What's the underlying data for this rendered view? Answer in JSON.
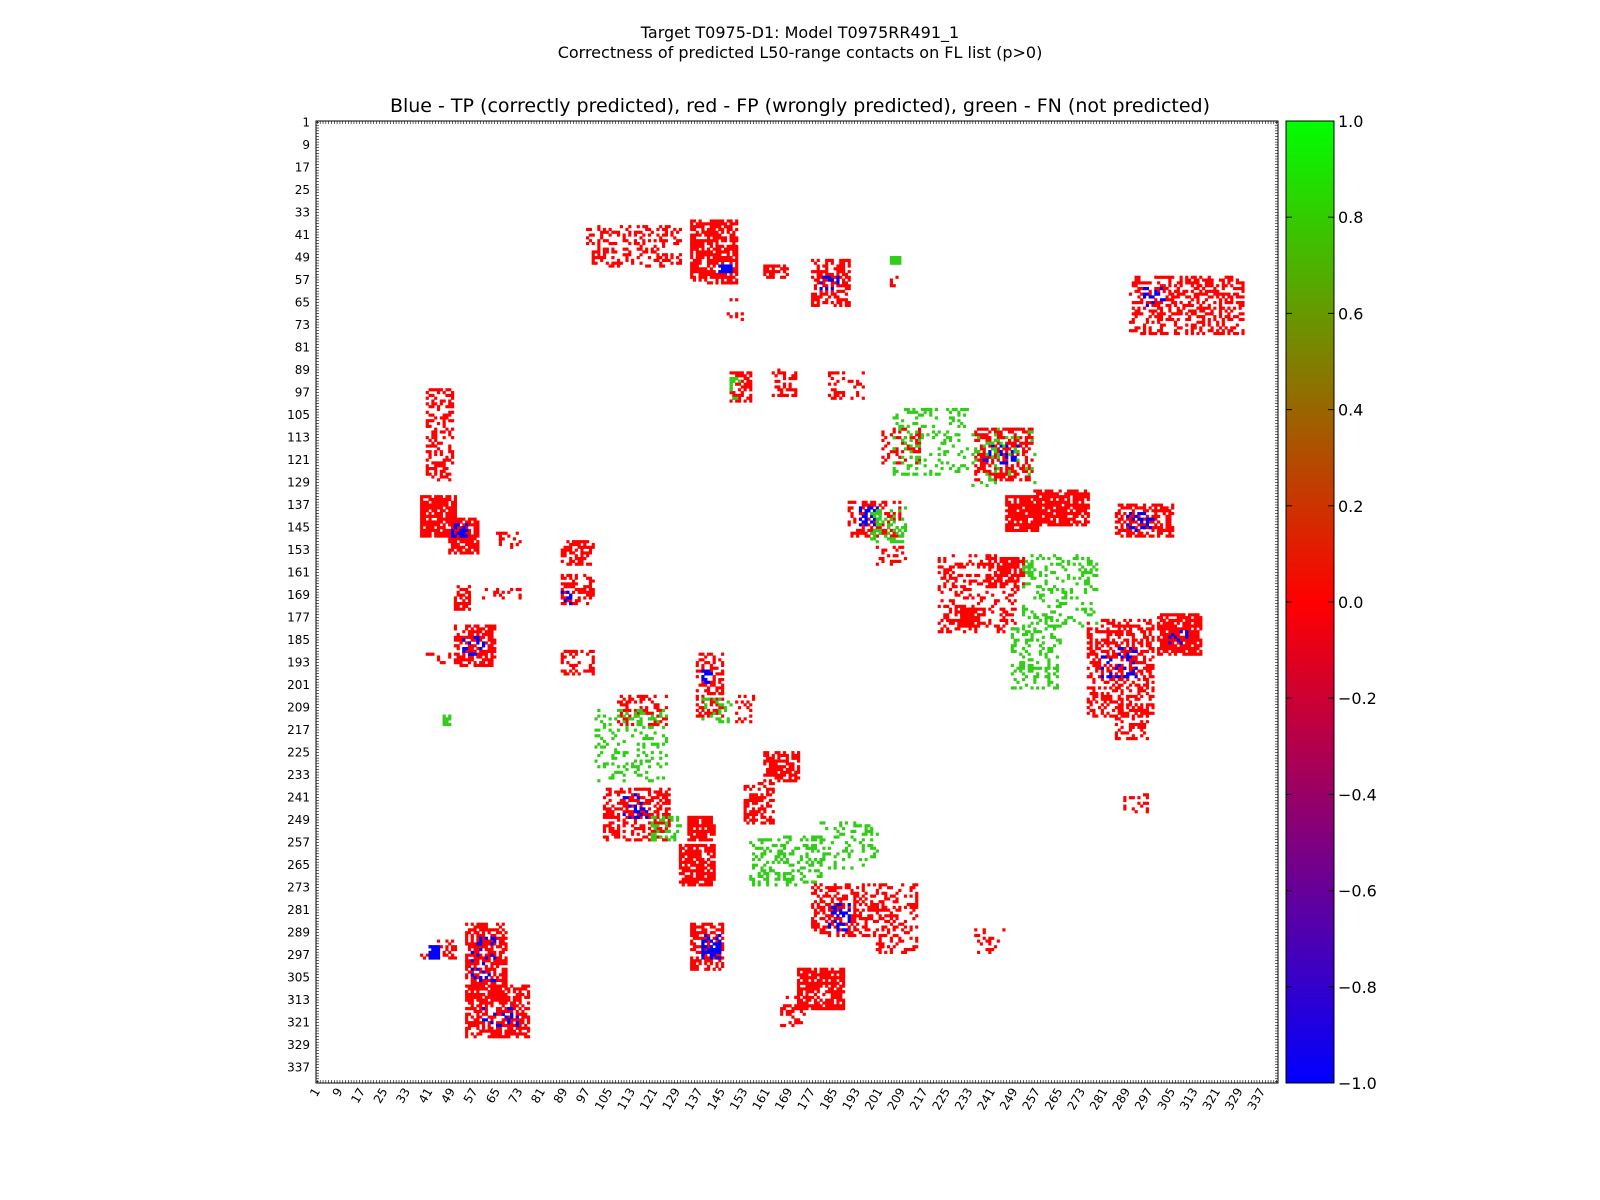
{
  "chart_data": {
    "type": "heatmap",
    "suptitle_line1": "Target T0975-D1: Model T0975RR491_1",
    "suptitle_line2": "Correctness of predicted L50-range contacts on FL list (p>0)",
    "title": "Blue - TP (correctly predicted), red - FP (wrongly predicted), green - FN (not predicted)",
    "axis_range": [
      1,
      342
    ],
    "tick_labels": [
      "1",
      "9",
      "17",
      "25",
      "33",
      "41",
      "49",
      "57",
      "65",
      "73",
      "81",
      "89",
      "97",
      "105",
      "113",
      "121",
      "129",
      "137",
      "145",
      "153",
      "161",
      "169",
      "177",
      "185",
      "193",
      "201",
      "209",
      "217",
      "225",
      "233",
      "241",
      "249",
      "257",
      "265",
      "273",
      "281",
      "289",
      "297",
      "305",
      "313",
      "321",
      "329",
      "337"
    ],
    "colorbar": {
      "range": [
        -1.0,
        1.0
      ],
      "tick_labels": [
        "1.0",
        "0.8",
        "0.6",
        "0.4",
        "0.2",
        "0.0",
        "−0.2",
        "−0.4",
        "−0.6",
        "−0.8",
        "−1.0"
      ],
      "colors": [
        "#0000ff",
        "#ff0000",
        "#00ff00"
      ]
    },
    "categories": {
      "tp": {
        "label": "TP (correctly predicted)",
        "value": -1.0,
        "color": "#0000ff"
      },
      "fp": {
        "label": "FP (wrongly predicted)",
        "value": 0.0,
        "color": "#ff0000"
      },
      "fn": {
        "label": "FN (not predicted)",
        "value": 1.0,
        "color": "#33cc1a"
      }
    },
    "regions": [
      {
        "c": "fp",
        "x": [
          97,
          130
        ],
        "y": [
          38,
          52
        ],
        "d": 0.35
      },
      {
        "c": "fp",
        "x": [
          134,
          150
        ],
        "y": [
          36,
          58
        ],
        "d": 0.75
      },
      {
        "c": "tp",
        "x": [
          144,
          148
        ],
        "y": [
          52,
          54
        ],
        "d": 0.9
      },
      {
        "c": "fp",
        "x": [
          160,
          168
        ],
        "y": [
          52,
          56
        ],
        "d": 0.6
      },
      {
        "c": "fp",
        "x": [
          177,
          190
        ],
        "y": [
          50,
          66
        ],
        "d": 0.55
      },
      {
        "c": "tp",
        "x": [
          180,
          186
        ],
        "y": [
          56,
          60
        ],
        "d": 0.4
      },
      {
        "c": "fp",
        "x": [
          147,
          152
        ],
        "y": [
          64,
          74
        ],
        "d": 0.1
      },
      {
        "c": "fp",
        "x": [
          205,
          207
        ],
        "y": [
          50,
          66
        ],
        "d": 0.12
      },
      {
        "c": "fn",
        "x": [
          205,
          208
        ],
        "y": [
          49,
          51
        ],
        "d": 0.8
      },
      {
        "c": "fp",
        "x": [
          290,
          330
        ],
        "y": [
          56,
          76
        ],
        "d": 0.45
      },
      {
        "c": "tp",
        "x": [
          295,
          302
        ],
        "y": [
          60,
          66
        ],
        "d": 0.3
      },
      {
        "c": "fp",
        "x": [
          148,
          155
        ],
        "y": [
          90,
          100
        ],
        "d": 0.55
      },
      {
        "c": "fp",
        "x": [
          163,
          171
        ],
        "y": [
          89,
          98
        ],
        "d": 0.45
      },
      {
        "c": "fn",
        "x": [
          148,
          151
        ],
        "y": [
          92,
          99
        ],
        "d": 0.3
      },
      {
        "c": "fp",
        "x": [
          183,
          195
        ],
        "y": [
          90,
          99
        ],
        "d": 0.25
      },
      {
        "c": "fp",
        "x": [
          40,
          49
        ],
        "y": [
          96,
          128
        ],
        "d": 0.45
      },
      {
        "c": "fp",
        "x": [
          38,
          50
        ],
        "y": [
          134,
          148
        ],
        "d": 0.8
      },
      {
        "c": "fp",
        "x": [
          48,
          58
        ],
        "y": [
          142,
          154
        ],
        "d": 0.8
      },
      {
        "c": "tp",
        "x": [
          49,
          54
        ],
        "y": [
          144,
          148
        ],
        "d": 0.6
      },
      {
        "c": "fp",
        "x": [
          65,
          73
        ],
        "y": [
          147,
          153
        ],
        "d": 0.15
      },
      {
        "c": "fp",
        "x": [
          88,
          99
        ],
        "y": [
          150,
          158
        ],
        "d": 0.55
      },
      {
        "c": "fp",
        "x": [
          88,
          99
        ],
        "y": [
          162,
          172
        ],
        "d": 0.5
      },
      {
        "c": "tp",
        "x": [
          88,
          91
        ],
        "y": [
          168,
          172
        ],
        "d": 0.5
      },
      {
        "c": "fp",
        "x": [
          50,
          55
        ],
        "y": [
          166,
          174
        ],
        "d": 0.6
      },
      {
        "c": "fp",
        "x": [
          60,
          73
        ],
        "y": [
          167,
          170
        ],
        "d": 0.15
      },
      {
        "c": "fp",
        "x": [
          50,
          64
        ],
        "y": [
          180,
          194
        ],
        "d": 0.65
      },
      {
        "c": "tp",
        "x": [
          53,
          60
        ],
        "y": [
          184,
          190
        ],
        "d": 0.4
      },
      {
        "c": "fp",
        "x": [
          40,
          50
        ],
        "y": [
          190,
          193
        ],
        "d": 0.3
      },
      {
        "c": "fp",
        "x": [
          88,
          99
        ],
        "y": [
          189,
          197
        ],
        "d": 0.35
      },
      {
        "c": "fn",
        "x": [
          46,
          48
        ],
        "y": [
          212,
          215
        ],
        "d": 0.7
      },
      {
        "c": "fp",
        "x": [
          136,
          145
        ],
        "y": [
          190,
          212
        ],
        "d": 0.45
      },
      {
        "c": "tp",
        "x": [
          137,
          141
        ],
        "y": [
          196,
          200
        ],
        "d": 0.45
      },
      {
        "c": "fn",
        "x": [
          138,
          148
        ],
        "y": [
          206,
          214
        ],
        "d": 0.25
      },
      {
        "c": "fp",
        "x": [
          150,
          157
        ],
        "y": [
          205,
          214
        ],
        "d": 0.3
      },
      {
        "c": "fp",
        "x": [
          108,
          125
        ],
        "y": [
          205,
          215
        ],
        "d": 0.4
      },
      {
        "c": "fn",
        "x": [
          100,
          125
        ],
        "y": [
          210,
          235
        ],
        "d": 0.2
      },
      {
        "c": "fp",
        "x": [
          103,
          126
        ],
        "y": [
          238,
          256
        ],
        "d": 0.5
      },
      {
        "c": "tp",
        "x": [
          110,
          118
        ],
        "y": [
          240,
          248
        ],
        "d": 0.2
      },
      {
        "c": "fn",
        "x": [
          120,
          130
        ],
        "y": [
          248,
          256
        ],
        "d": 0.3
      },
      {
        "c": "fp",
        "x": [
          133,
          142
        ],
        "y": [
          248,
          256
        ],
        "d": 0.8
      },
      {
        "c": "fp",
        "x": [
          130,
          142
        ],
        "y": [
          258,
          272
        ],
        "d": 0.75
      },
      {
        "c": "fp",
        "x": [
          153,
          163
        ],
        "y": [
          236,
          250
        ],
        "d": 0.45
      },
      {
        "c": "fp",
        "x": [
          160,
          172
        ],
        "y": [
          225,
          235
        ],
        "d": 0.65
      },
      {
        "c": "fn",
        "x": [
          155,
          180
        ],
        "y": [
          255,
          272
        ],
        "d": 0.35
      },
      {
        "c": "fn",
        "x": [
          180,
          200
        ],
        "y": [
          250,
          266
        ],
        "d": 0.2
      },
      {
        "c": "fp",
        "x": [
          177,
          200
        ],
        "y": [
          272,
          290
        ],
        "d": 0.45
      },
      {
        "c": "tp",
        "x": [
          183,
          190
        ],
        "y": [
          278,
          288
        ],
        "d": 0.3
      },
      {
        "c": "fp",
        "x": [
          200,
          214
        ],
        "y": [
          272,
          296
        ],
        "d": 0.3
      },
      {
        "c": "fp",
        "x": [
          134,
          145
        ],
        "y": [
          286,
          302
        ],
        "d": 0.65
      },
      {
        "c": "tp",
        "x": [
          138,
          144
        ],
        "y": [
          290,
          298
        ],
        "d": 0.4
      },
      {
        "c": "fp",
        "x": [
          172,
          188
        ],
        "y": [
          302,
          316
        ],
        "d": 0.7
      },
      {
        "c": "fp",
        "x": [
          166,
          174
        ],
        "y": [
          312,
          322
        ],
        "d": 0.3
      },
      {
        "c": "fp",
        "x": [
          38,
          50
        ],
        "y": [
          292,
          298
        ],
        "d": 0.4
      },
      {
        "c": "tp",
        "x": [
          41,
          44
        ],
        "y": [
          294,
          298
        ],
        "d": 0.9
      },
      {
        "c": "fp",
        "x": [
          54,
          68
        ],
        "y": [
          286,
          312
        ],
        "d": 0.6
      },
      {
        "c": "tp",
        "x": [
          56,
          64
        ],
        "y": [
          290,
          306
        ],
        "d": 0.2
      },
      {
        "c": "fp",
        "x": [
          54,
          76
        ],
        "y": [
          308,
          326
        ],
        "d": 0.65
      },
      {
        "c": "tp",
        "x": [
          60,
          72
        ],
        "y": [
          316,
          322
        ],
        "d": 0.25
      },
      {
        "c": "fp",
        "x": [
          202,
          215
        ],
        "y": [
          110,
          122
        ],
        "d": 0.35
      },
      {
        "c": "fn",
        "x": [
          206,
          232
        ],
        "y": [
          103,
          126
        ],
        "d": 0.2
      },
      {
        "c": "fp",
        "x": [
          235,
          255
        ],
        "y": [
          110,
          128
        ],
        "d": 0.55
      },
      {
        "c": "tp",
        "x": [
          238,
          250
        ],
        "y": [
          116,
          122
        ],
        "d": 0.25
      },
      {
        "c": "fn",
        "x": [
          234,
          256
        ],
        "y": [
          110,
          130
        ],
        "d": 0.12
      },
      {
        "c": "fp",
        "x": [
          246,
          257
        ],
        "y": [
          134,
          146
        ],
        "d": 0.8
      },
      {
        "c": "fp",
        "x": [
          256,
          275
        ],
        "y": [
          132,
          144
        ],
        "d": 0.8
      },
      {
        "c": "fp",
        "x": [
          190,
          208
        ],
        "y": [
          136,
          148
        ],
        "d": 0.45
      },
      {
        "c": "tp",
        "x": [
          193,
          200
        ],
        "y": [
          138,
          144
        ],
        "d": 0.35
      },
      {
        "c": "fn",
        "x": [
          198,
          210
        ],
        "y": [
          138,
          150
        ],
        "d": 0.3
      },
      {
        "c": "fp",
        "x": [
          200,
          210
        ],
        "y": [
          152,
          158
        ],
        "d": 0.25
      },
      {
        "c": "fp",
        "x": [
          285,
          305
        ],
        "y": [
          137,
          148
        ],
        "d": 0.55
      },
      {
        "c": "tp",
        "x": [
          288,
          298
        ],
        "y": [
          140,
          146
        ],
        "d": 0.3
      },
      {
        "c": "fp",
        "x": [
          222,
          250
        ],
        "y": [
          155,
          182
        ],
        "d": 0.3
      },
      {
        "c": "fp",
        "x": [
          240,
          252
        ],
        "y": [
          156,
          166
        ],
        "d": 0.6
      },
      {
        "c": "fp",
        "x": [
          228,
          236
        ],
        "y": [
          174,
          180
        ],
        "d": 0.8
      },
      {
        "c": "fn",
        "x": [
          252,
          278
        ],
        "y": [
          155,
          180
        ],
        "d": 0.25
      },
      {
        "c": "fn",
        "x": [
          248,
          265
        ],
        "y": [
          180,
          202
        ],
        "d": 0.3
      },
      {
        "c": "fp",
        "x": [
          275,
          298
        ],
        "y": [
          178,
          212
        ],
        "d": 0.45
      },
      {
        "c": "tp",
        "x": [
          280,
          292
        ],
        "y": [
          188,
          198
        ],
        "d": 0.2
      },
      {
        "c": "fp",
        "x": [
          285,
          296
        ],
        "y": [
          208,
          220
        ],
        "d": 0.45
      },
      {
        "c": "fp",
        "x": [
          300,
          315
        ],
        "y": [
          176,
          190
        ],
        "d": 0.75
      },
      {
        "c": "tp",
        "x": [
          304,
          310
        ],
        "y": [
          182,
          186
        ],
        "d": 0.3
      },
      {
        "c": "fp",
        "x": [
          288,
          296
        ],
        "y": [
          240,
          246
        ],
        "d": 0.3
      },
      {
        "c": "fp",
        "x": [
          235,
          245
        ],
        "y": [
          288,
          296
        ],
        "d": 0.2
      }
    ]
  }
}
